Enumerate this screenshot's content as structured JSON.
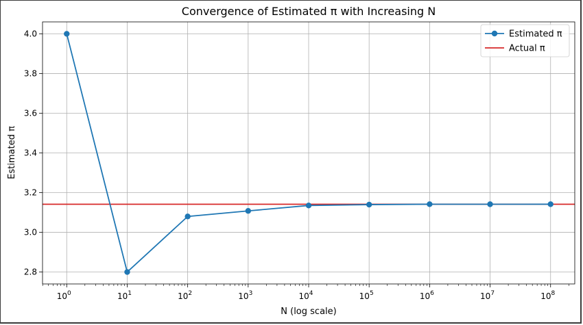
{
  "chart_data": {
    "type": "line",
    "title": "Convergence of Estimated π with Increasing N",
    "xlabel": "N (log scale)",
    "ylabel": "Estimated π",
    "xscale": "log",
    "x": [
      1,
      10,
      100,
      1000,
      10000,
      100000,
      1000000,
      10000000,
      100000000
    ],
    "x_tick_labels": [
      "10",
      "10",
      "10",
      "10",
      "10",
      "10",
      "10",
      "10",
      "10"
    ],
    "x_tick_exponents": [
      "0",
      "1",
      "2",
      "3",
      "4",
      "5",
      "6",
      "7",
      "8"
    ],
    "y_ticks": [
      "2.8",
      "3.0",
      "3.2",
      "3.4",
      "3.6",
      "3.8",
      "4.0"
    ],
    "ylim": [
      2.74,
      4.06
    ],
    "grid": true,
    "legend_position": "top-right",
    "series": [
      {
        "name": "Estimated π",
        "color": "#1f77b4",
        "marker": "circle",
        "values": [
          4.0,
          2.8,
          3.08,
          3.108,
          3.1352,
          3.13956,
          3.141656,
          3.1414852,
          3.14165452
        ]
      },
      {
        "name": "Actual π",
        "color": "#d62728",
        "type": "hline",
        "value": 3.14159265
      }
    ]
  }
}
